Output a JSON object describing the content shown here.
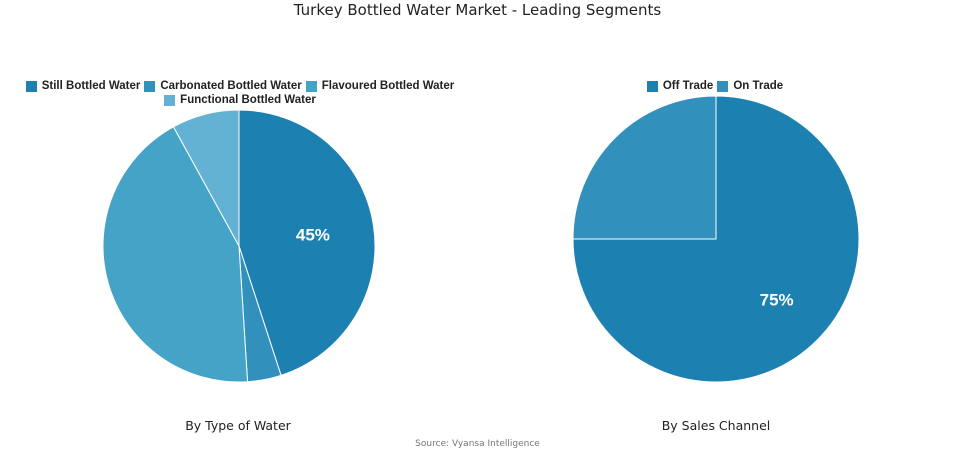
{
  "title": "Turkey Bottled Water Market - Leading Segments",
  "source": "Source: Vyansa Intelligence",
  "chart_data": [
    {
      "type": "pie",
      "xlabel": "By Type of Water",
      "legend_position": "top",
      "categories": [
        "Still Bottled Water",
        "Carbonated Bottled Water",
        "Flavoured Bottled Water",
        "Functional Bottled Water"
      ],
      "values": [
        45,
        4,
        43,
        8
      ],
      "colors": [
        "#1c80b0",
        "#3190bc",
        "#46a3c8",
        "#63b2d3"
      ],
      "data_labels": [
        "45%",
        "",
        "",
        ""
      ]
    },
    {
      "type": "pie",
      "xlabel": "By Sales Channel",
      "legend_position": "top",
      "categories": [
        "Off Trade",
        "On Trade"
      ],
      "values": [
        75,
        25
      ],
      "colors": [
        "#1c80b0",
        "#3190bc"
      ],
      "data_labels": [
        "75%",
        ""
      ]
    }
  ]
}
